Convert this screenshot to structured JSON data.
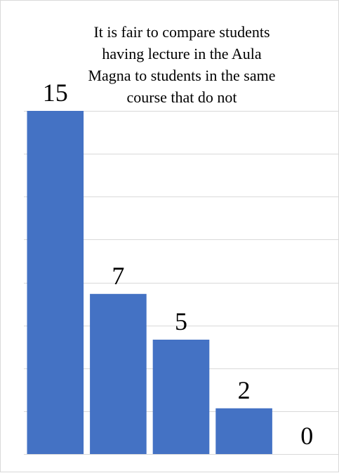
{
  "chart_data": {
    "type": "bar",
    "title_lines": [
      "It is fair to compare students",
      "having lecture in the Aula",
      "Magna to students in the same",
      "course that do not"
    ],
    "categories": [
      "",
      "",
      "",
      "",
      ""
    ],
    "values": [
      15,
      7,
      5,
      2,
      0
    ],
    "data_labels": [
      "15",
      "7",
      "5",
      "2",
      "0"
    ],
    "ylim": [
      0,
      15
    ],
    "grid": true,
    "legend": "none",
    "bar_color": "#4472c4",
    "grid_color": "#d9d9d9",
    "xlabel": "",
    "ylabel": ""
  }
}
